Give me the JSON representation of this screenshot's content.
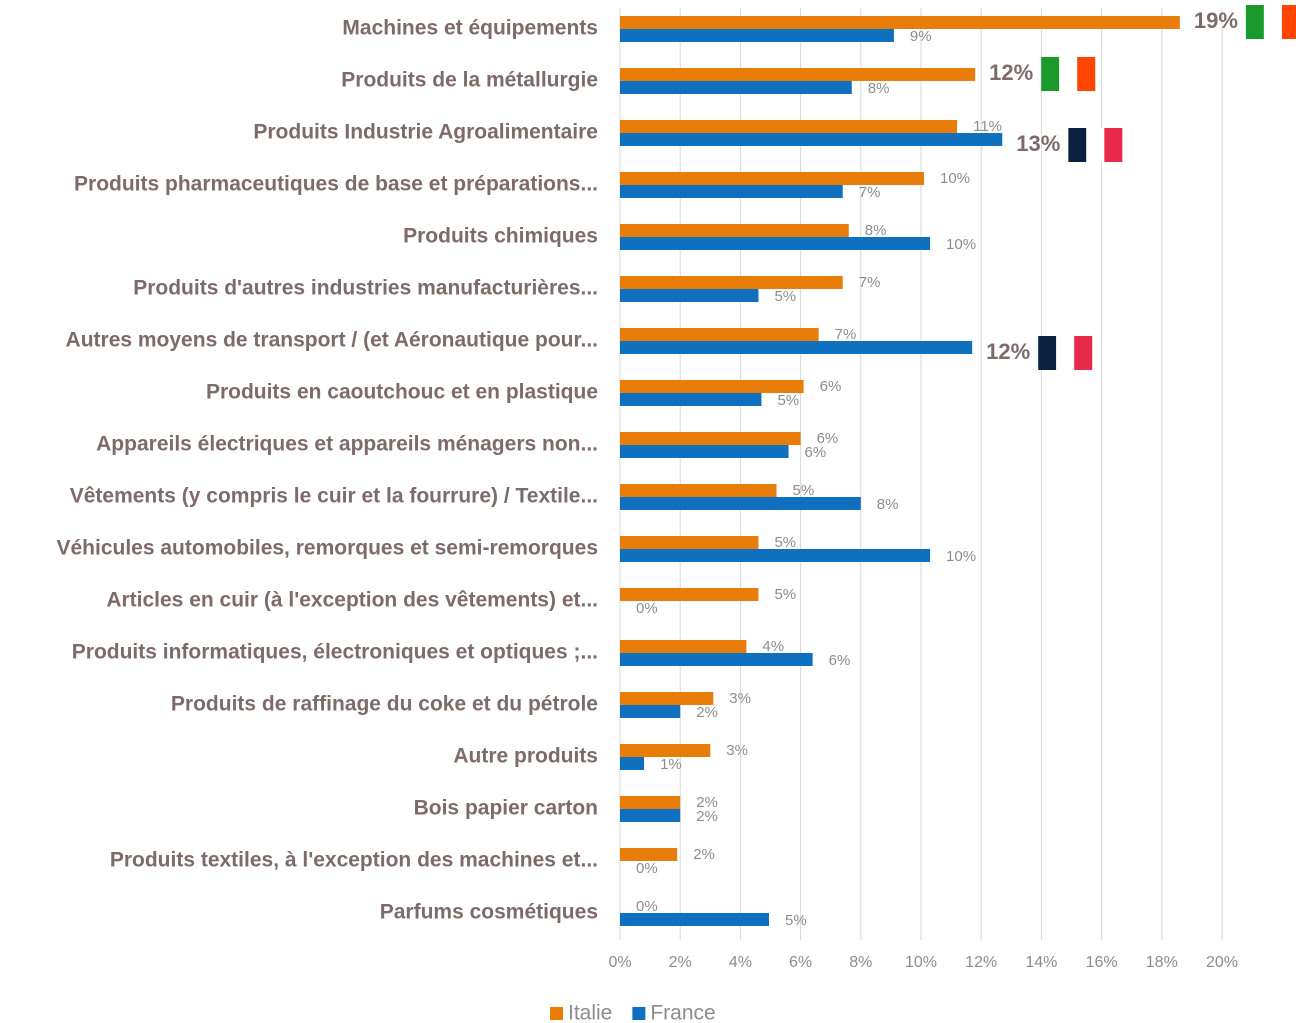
{
  "chart_data": {
    "type": "bar",
    "orientation": "horizontal",
    "categories": [
      "Machines et équipements",
      "Produits de la métallurgie",
      "Produits Industrie Agroalimentaire",
      "Produits pharmaceutiques de base et préparations...",
      "Produits chimiques",
      "Produits d'autres industries manufacturières...",
      "Autres moyens de transport / (et Aéronautique pour...",
      "Produits en caoutchouc et en plastique",
      "Appareils électriques et appareils ménagers non...",
      "Vêtements (y compris le cuir et la fourrure) / Textile...",
      "Véhicules automobiles, remorques et semi-remorques",
      "Articles en cuir (à l'exception des vêtements) et...",
      "Produits informatiques, électroniques et optiques ;...",
      "Produits de raffinage du coke et du pétrole",
      "Autre produits",
      "Bois papier carton",
      "Produits textiles, à l'exception des machines et...",
      "Parfums cosmétiques"
    ],
    "series": [
      {
        "name": "Italie",
        "color": "#e87d0a",
        "values": [
          18.6,
          11.8,
          11.2,
          10.1,
          7.6,
          7.4,
          6.6,
          6.1,
          6.0,
          5.2,
          4.6,
          4.6,
          4.2,
          3.1,
          3.0,
          2.0,
          1.9,
          0
        ],
        "value_labels": [
          "19%",
          "12%",
          "11%",
          "10%",
          "8%",
          "7%",
          "7%",
          "6%",
          "6%",
          "5%",
          "5%",
          "5%",
          "4%",
          "3%",
          "3%",
          "2%",
          "2%",
          "0%"
        ]
      },
      {
        "name": "France",
        "color": "#1070c0",
        "values": [
          9.1,
          7.7,
          12.7,
          7.4,
          10.3,
          4.6,
          11.7,
          4.7,
          5.6,
          8.0,
          10.3,
          0,
          6.4,
          2.0,
          0.8,
          2.0,
          0,
          4.95
        ],
        "value_labels": [
          "9%",
          "8%",
          "13%",
          "7%",
          "10%",
          "5%",
          "12%",
          "5%",
          "6%",
          "8%",
          "10%",
          "0%",
          "6%",
          "2%",
          "1%",
          "2%",
          "0%",
          "5%"
        ]
      }
    ],
    "xlim": [
      0,
      20
    ],
    "xticks": [
      {
        "value": 0,
        "label": "0%"
      },
      {
        "value": 2,
        "label": "2%"
      },
      {
        "value": 4,
        "label": "4%"
      },
      {
        "value": 6,
        "label": "6%"
      },
      {
        "value": 8,
        "label": "8%"
      },
      {
        "value": 10,
        "label": "10%"
      },
      {
        "value": 12,
        "label": "12%"
      },
      {
        "value": 14,
        "label": "14%"
      },
      {
        "value": 16,
        "label": "16%"
      },
      {
        "value": 18,
        "label": "18%"
      },
      {
        "value": 20,
        "label": "20%"
      }
    ],
    "grid": true,
    "legend": "bottom"
  }
}
